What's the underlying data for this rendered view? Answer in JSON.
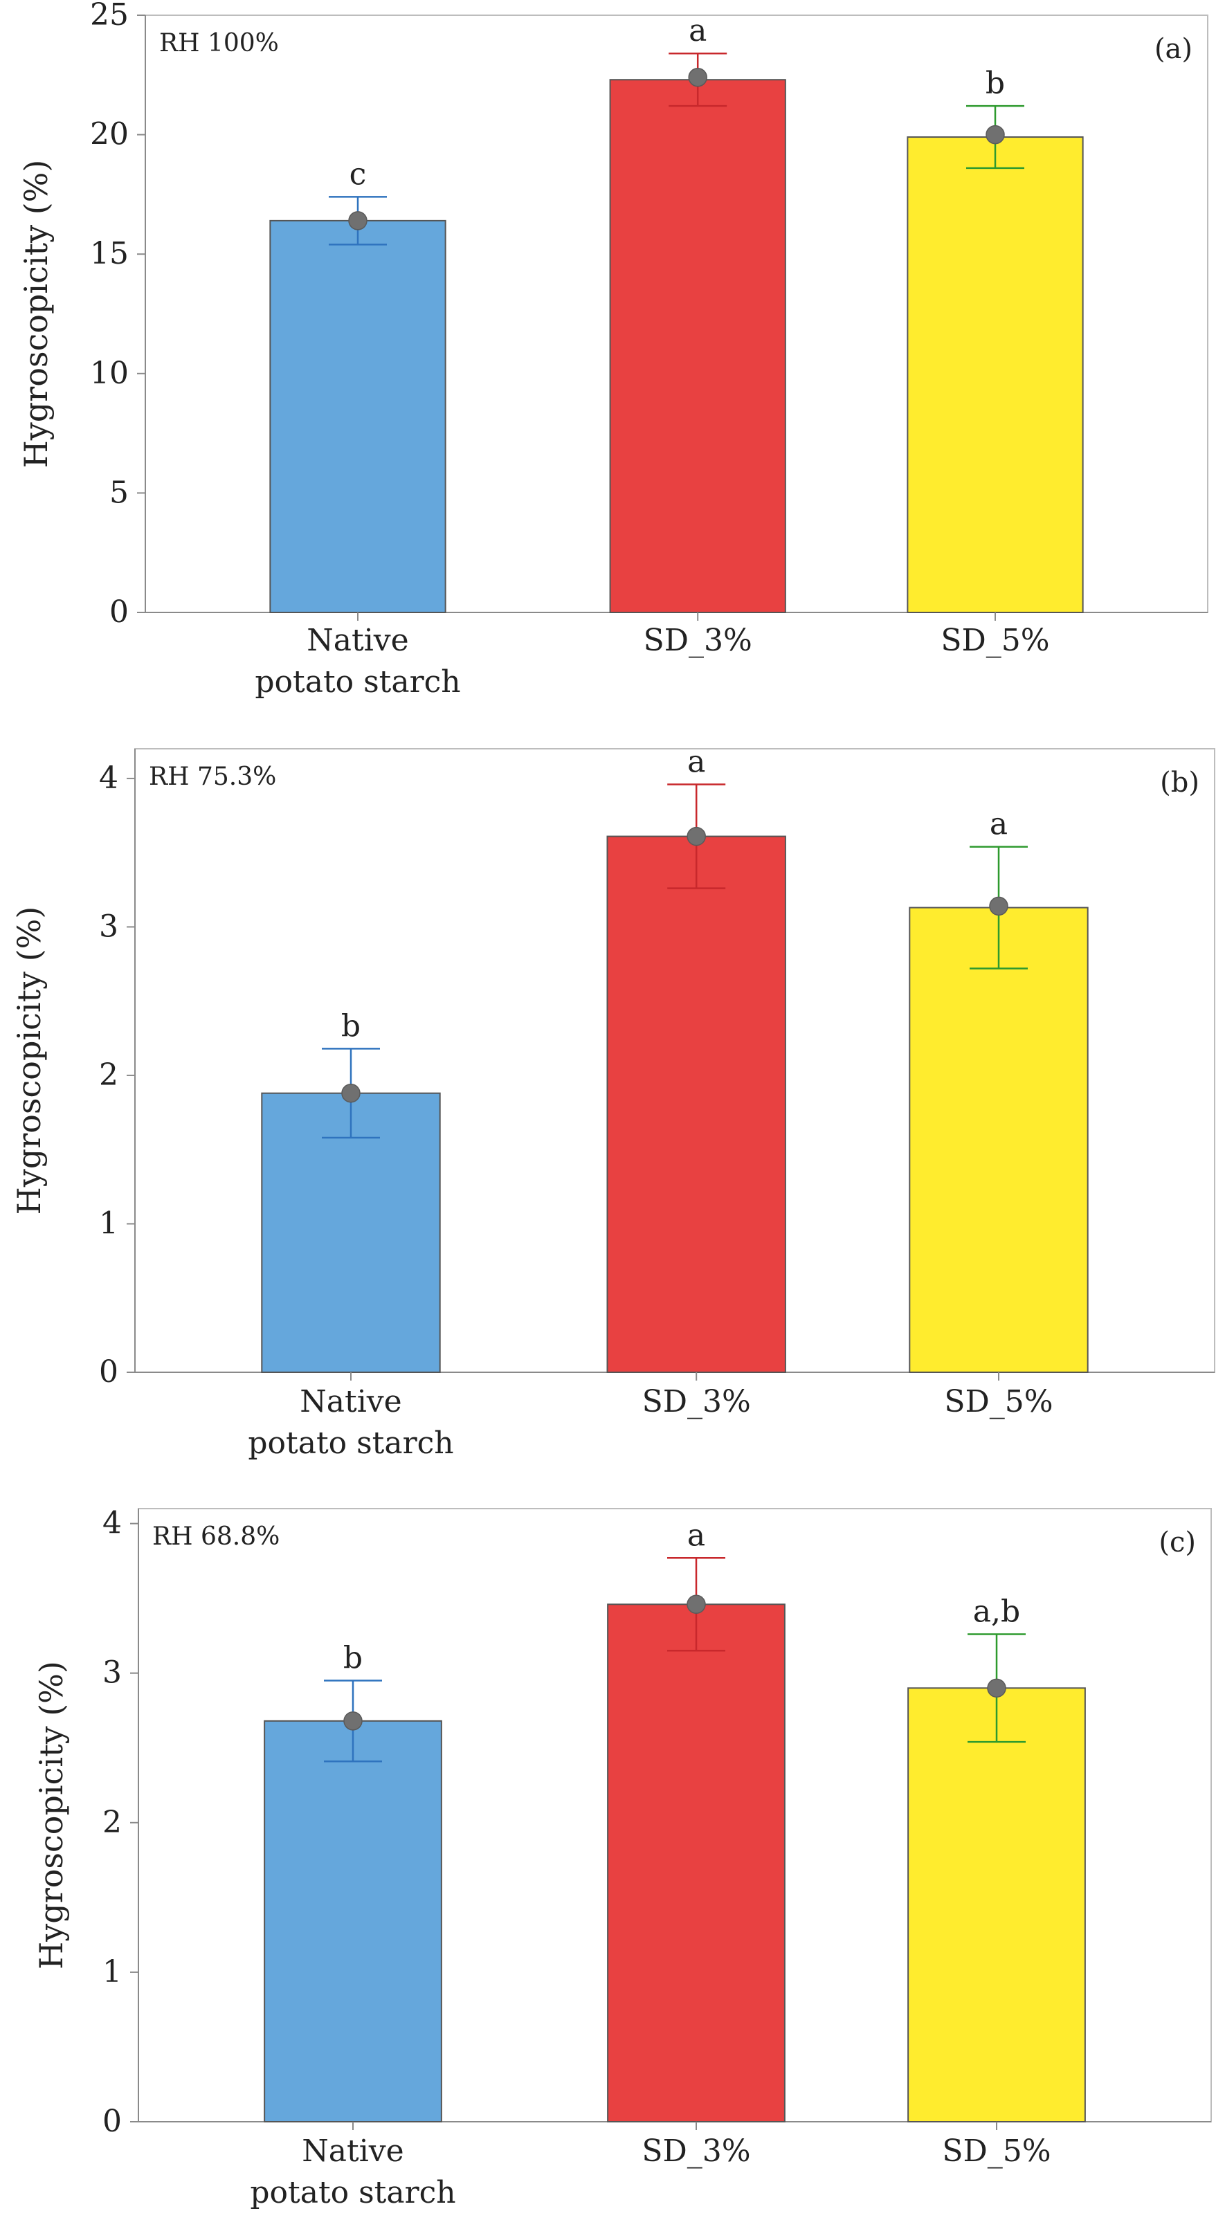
{
  "chart_data": [
    {
      "type": "bar",
      "panel": "(a)",
      "condition": "RH 100%",
      "ylabel": "Hygroscopicity (%)",
      "ylim": [
        0,
        25
      ],
      "yticks": [
        0,
        5,
        10,
        15,
        20,
        25
      ],
      "categories": [
        "Native potato starch",
        "SD_3%",
        "SD_5%"
      ],
      "category_lines": [
        [
          "Native",
          "potato starch"
        ],
        [
          "SD_3%"
        ],
        [
          "SD_5%"
        ]
      ],
      "values": [
        16.4,
        22.3,
        19.9
      ],
      "errors": [
        1.0,
        1.1,
        1.3
      ],
      "points": [
        16.4,
        22.4,
        20.0
      ],
      "significance": [
        "c",
        "a",
        "b"
      ],
      "colors": [
        "#65A7DC",
        "#E84141",
        "#FFEC2E"
      ],
      "error_colors": [
        "#2F73BE",
        "#C8282C",
        "#2E9A2E"
      ]
    },
    {
      "type": "bar",
      "panel": "(b)",
      "condition": "RH 75.3%",
      "ylabel": "Hygroscopicity (%)",
      "ylim": [
        0,
        4.2
      ],
      "yticks": [
        0,
        1,
        2,
        3,
        4
      ],
      "categories": [
        "Native potato starch",
        "SD_3%",
        "SD_5%"
      ],
      "category_lines": [
        [
          "Native",
          "potato starch"
        ],
        [
          "SD_3%"
        ],
        [
          "SD_5%"
        ]
      ],
      "values": [
        1.88,
        3.61,
        3.13
      ],
      "errors": [
        0.3,
        0.35,
        0.41
      ],
      "points": [
        1.88,
        3.61,
        3.14
      ],
      "significance": [
        "b",
        "a",
        "a"
      ],
      "colors": [
        "#65A7DC",
        "#E84141",
        "#FFEC2E"
      ],
      "error_colors": [
        "#2F73BE",
        "#C8282C",
        "#2E9A2E"
      ]
    },
    {
      "type": "bar",
      "panel": "(c)",
      "condition": "RH 68.8%",
      "ylabel": "Hygroscopicity (%)",
      "ylim": [
        0,
        4.1
      ],
      "yticks": [
        0,
        1,
        2,
        3,
        4
      ],
      "categories": [
        "Native potato starch",
        "SD_3%",
        "SD_5%"
      ],
      "category_lines": [
        [
          "Native",
          "potato starch"
        ],
        [
          "SD_3%"
        ],
        [
          "SD_5%"
        ]
      ],
      "values": [
        2.68,
        3.46,
        2.9
      ],
      "errors": [
        0.27,
        0.31,
        0.36
      ],
      "points": [
        2.68,
        3.46,
        2.9
      ],
      "significance": [
        "b",
        "a",
        "a,b"
      ],
      "colors": [
        "#65A7DC",
        "#E84141",
        "#FFEC2E"
      ],
      "error_colors": [
        "#2F73BE",
        "#C8282C",
        "#2E9A2E"
      ]
    }
  ]
}
